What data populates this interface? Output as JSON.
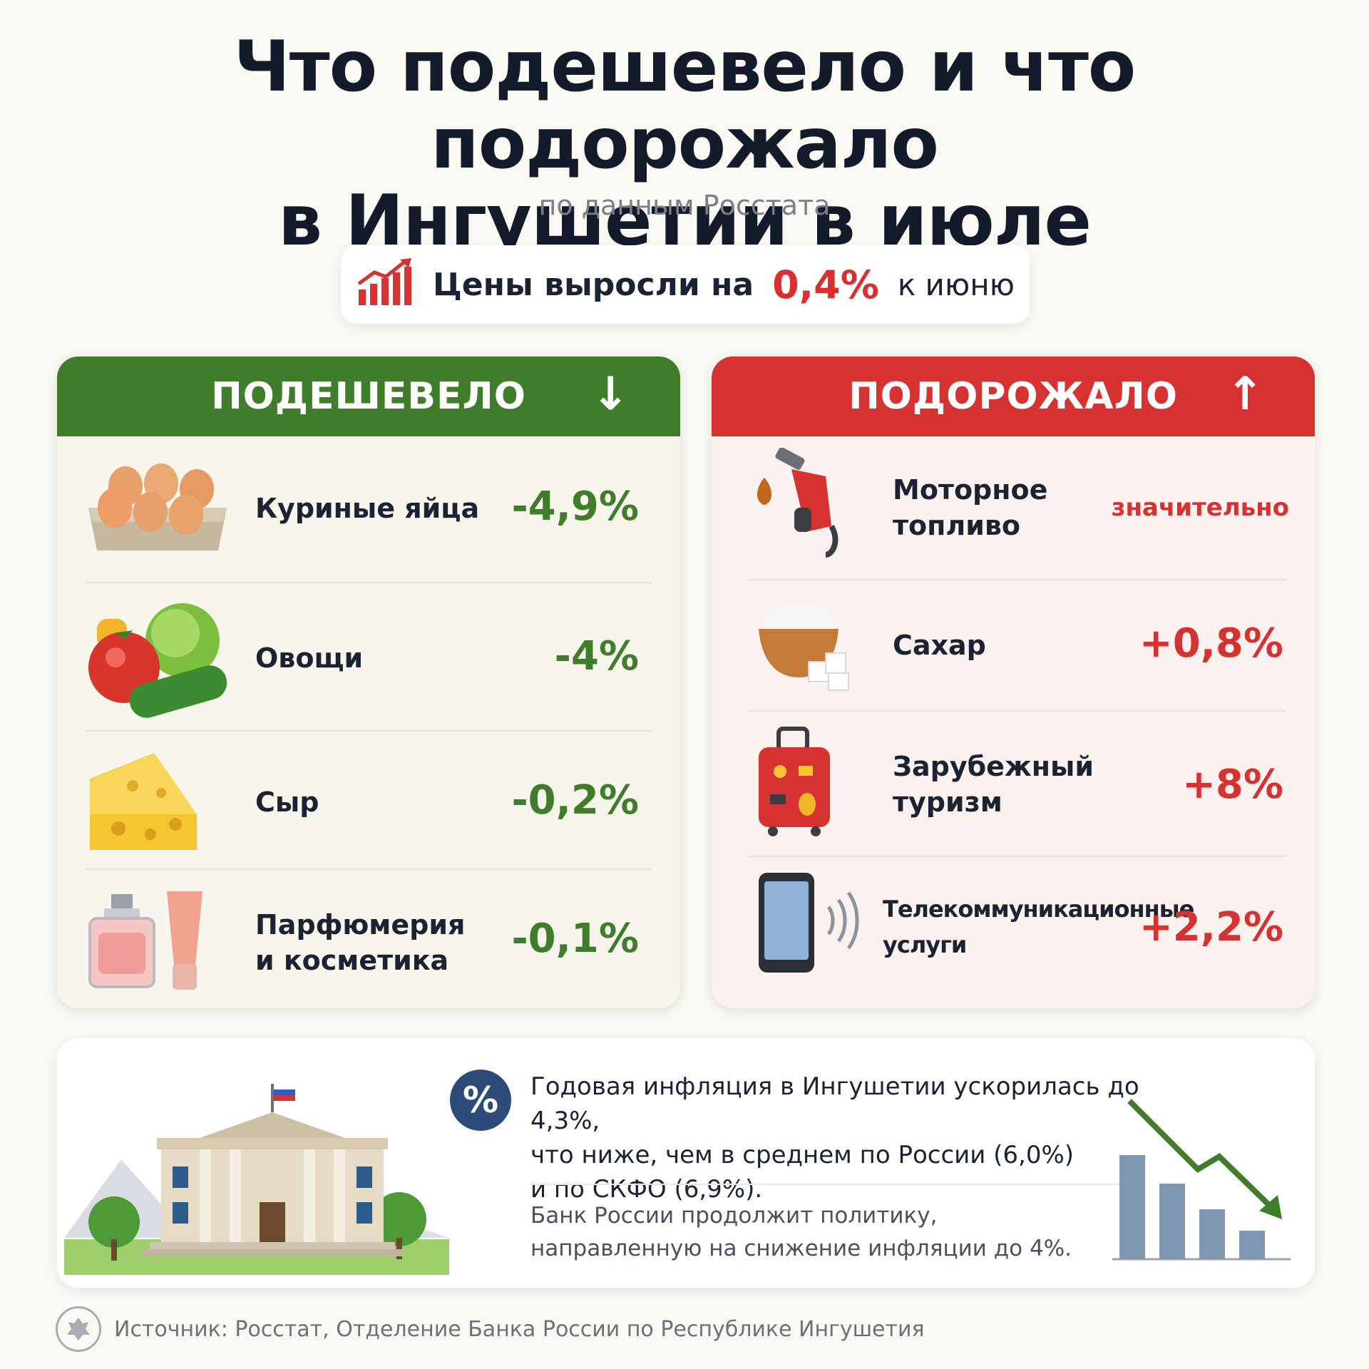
{
  "title_line1": "Что подешевело и что подорожало",
  "title_line2": "в Ингушетии в июле",
  "subtitle": "по данным Росстата",
  "price_summary": {
    "prefix": "Цены выросли на",
    "value": "0,4%",
    "suffix": "к июню",
    "icon": "rising-chart-icon"
  },
  "cheaper": {
    "header": "ПОДЕШЕВЕЛО",
    "arrow": "↓",
    "color": "#3f7d2a",
    "items": [
      {
        "label": "Куриные яйца",
        "value": "-4,9%",
        "icon": "eggs-icon"
      },
      {
        "label": "Овощи",
        "value": "-4%",
        "icon": "vegetables-icon"
      },
      {
        "label": "Сыр",
        "value": "-0,2%",
        "icon": "cheese-icon"
      },
      {
        "label_line1": "Парфюмерия",
        "label_line2": "и косметика",
        "value": "-0,1%",
        "icon": "cosmetics-icon"
      }
    ]
  },
  "pricier": {
    "header": "ПОДОРОЖАЛО",
    "arrow": "↑",
    "color": "#d63232",
    "items": [
      {
        "label_line1": "Моторное",
        "label_line2": "топливо",
        "value": "значительно",
        "icon": "fuel-nozzle-icon"
      },
      {
        "label": "Сахар",
        "value": "+0,8%",
        "icon": "sugar-bowl-icon"
      },
      {
        "label_line1": "Зарубежный",
        "label_line2": "туризм",
        "value": "+8%",
        "icon": "suitcase-icon"
      },
      {
        "label_line1": "Телекоммуникационные",
        "label_line2": "услуги",
        "value": "+2,2%",
        "icon": "smartphone-icon"
      }
    ]
  },
  "inflation": {
    "badge": "%",
    "line1": "Годовая инфляция в Ингушетии ускорилась до 4,3%,",
    "line2": "что ниже, чем в среднем по России (6,0%)",
    "line3": "и по СКФО (6,9%).",
    "bank_line1": "Банк России продолжит политику,",
    "bank_line2": "направленную на снижение инфляции до 4%.",
    "building_icon": "bank-building-icon",
    "chart_icon": "declining-bars-icon"
  },
  "source": "Источник: Росстат, Отделение Банка России по Республике Ингушетия",
  "source_logo": "bank-of-russia-emblem-icon"
}
